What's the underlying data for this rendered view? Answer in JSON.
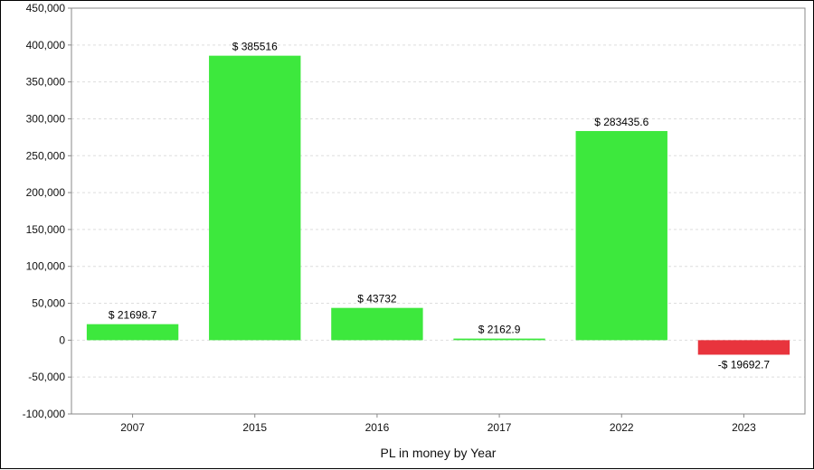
{
  "chart_data": {
    "type": "bar",
    "title": "",
    "xlabel": "PL in money by Year",
    "ylabel": "",
    "categories": [
      "2007",
      "2015",
      "2016",
      "2017",
      "2022",
      "2023"
    ],
    "values": [
      21698.7,
      385516,
      43732,
      2162.9,
      283435.6,
      -19692.7
    ],
    "data_labels": [
      "$ 21698.7",
      "$ 385516",
      "$ 43732",
      "$ 2162.9",
      "$ 283435.6",
      "-$ 19692.7"
    ],
    "ylim": [
      -100000,
      450000
    ],
    "yticks": [
      -100000,
      -50000,
      0,
      50000,
      100000,
      150000,
      200000,
      250000,
      300000,
      350000,
      400000,
      450000
    ],
    "ytick_labels": [
      "-100,000",
      "-50,000",
      "0",
      "50,000",
      "100,000",
      "150,000",
      "200,000",
      "250,000",
      "300,000",
      "350,000",
      "400,000",
      "450,000"
    ],
    "grid": true,
    "colors": {
      "positive": "#3de83d",
      "negative": "#e8343d",
      "grid": "#dddddd",
      "frame": "#888888"
    }
  }
}
